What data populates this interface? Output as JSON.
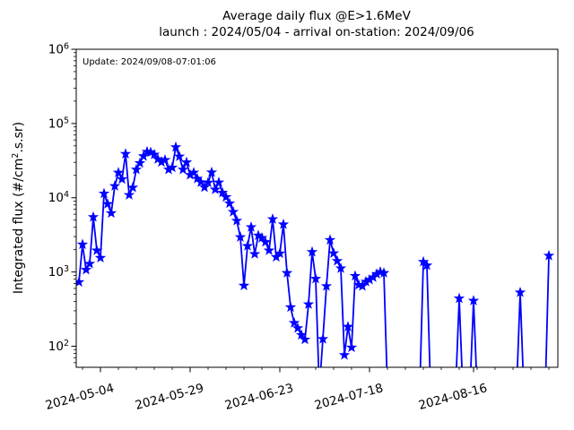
{
  "figure": {
    "title_line1": "Average daily flux @E>1.6MeV",
    "title_line2": "launch : 2024/05/04 - arrival on-station: 2024/09/06",
    "annotation": "Update: 2024/09/08-07:01:06",
    "ylabel_prefix": "Integrated flux (#/cm",
    "ylabel_sup": "2",
    "ylabel_suffix": ".s.sr)"
  },
  "chart_data": {
    "type": "line",
    "title": "Average daily flux @E>1.6MeV",
    "subtitle": "launch : 2024/05/04 - arrival on-station: 2024/09/06",
    "annotation": "Update: 2024/09/08-07:01:06",
    "xlabel": "",
    "ylabel": "Integrated flux (#/cm^2.s.sr)",
    "y_scale": "log",
    "ylim": [
      52,
      1000000
    ],
    "grid": false,
    "legend": "none",
    "line_color": "#0000ff",
    "marker": "star",
    "x_start_date": "2024-04-28",
    "x_end_date": "2024-09-06",
    "zero_means": "no data (plotted below log axis)",
    "xlim_day_index": [
      -0.75,
      133.5
    ],
    "x_major_ticks": [
      {
        "label": "2024-05-04",
        "day_index": 6
      },
      {
        "label": "2024-05-29",
        "day_index": 31
      },
      {
        "label": "2024-06-23",
        "day_index": 56
      },
      {
        "label": "2024-07-18",
        "day_index": 81
      },
      {
        "label": "2024-08-16",
        "day_index": 110
      }
    ],
    "x_minor_tick_interval_days": 5,
    "y_tick_exponents": [
      2,
      3,
      4,
      5,
      6
    ],
    "series": [
      {
        "name": "Average daily integrated flux",
        "daily_values_from_start_date": [
          730,
          2350,
          1070,
          1290,
          5500,
          1950,
          1550,
          11400,
          8250,
          6200,
          14400,
          21800,
          17800,
          39000,
          10900,
          13700,
          24000,
          29300,
          36300,
          41700,
          40900,
          38200,
          33100,
          30200,
          32300,
          24000,
          25500,
          48000,
          36000,
          24000,
          30000,
          20300,
          21800,
          18100,
          16200,
          13800,
          16000,
          22000,
          12900,
          16100,
          11700,
          10200,
          8400,
          6450,
          4900,
          2950,
          655,
          2240,
          4020,
          1745,
          3100,
          2880,
          2530,
          1950,
          5150,
          1590,
          1780,
          4380,
          970,
          335,
          206,
          175,
          142,
          123,
          367,
          1860,
          810,
          0,
          125,
          645,
          2700,
          1790,
          1410,
          1120,
          76,
          183,
          96,
          885,
          670,
          645,
          740,
          785,
          845,
          940,
          1000,
          970,
          0,
          0,
          0,
          0,
          0,
          0,
          0,
          0,
          0,
          0,
          1370,
          1225,
          0,
          0,
          0,
          0,
          0,
          0,
          0,
          0,
          440,
          0,
          0,
          0,
          410,
          0,
          0,
          0,
          0,
          0,
          0,
          0,
          0,
          0,
          0,
          0,
          0,
          530,
          0,
          0,
          0,
          0,
          0,
          0,
          0,
          1660
        ]
      }
    ]
  }
}
